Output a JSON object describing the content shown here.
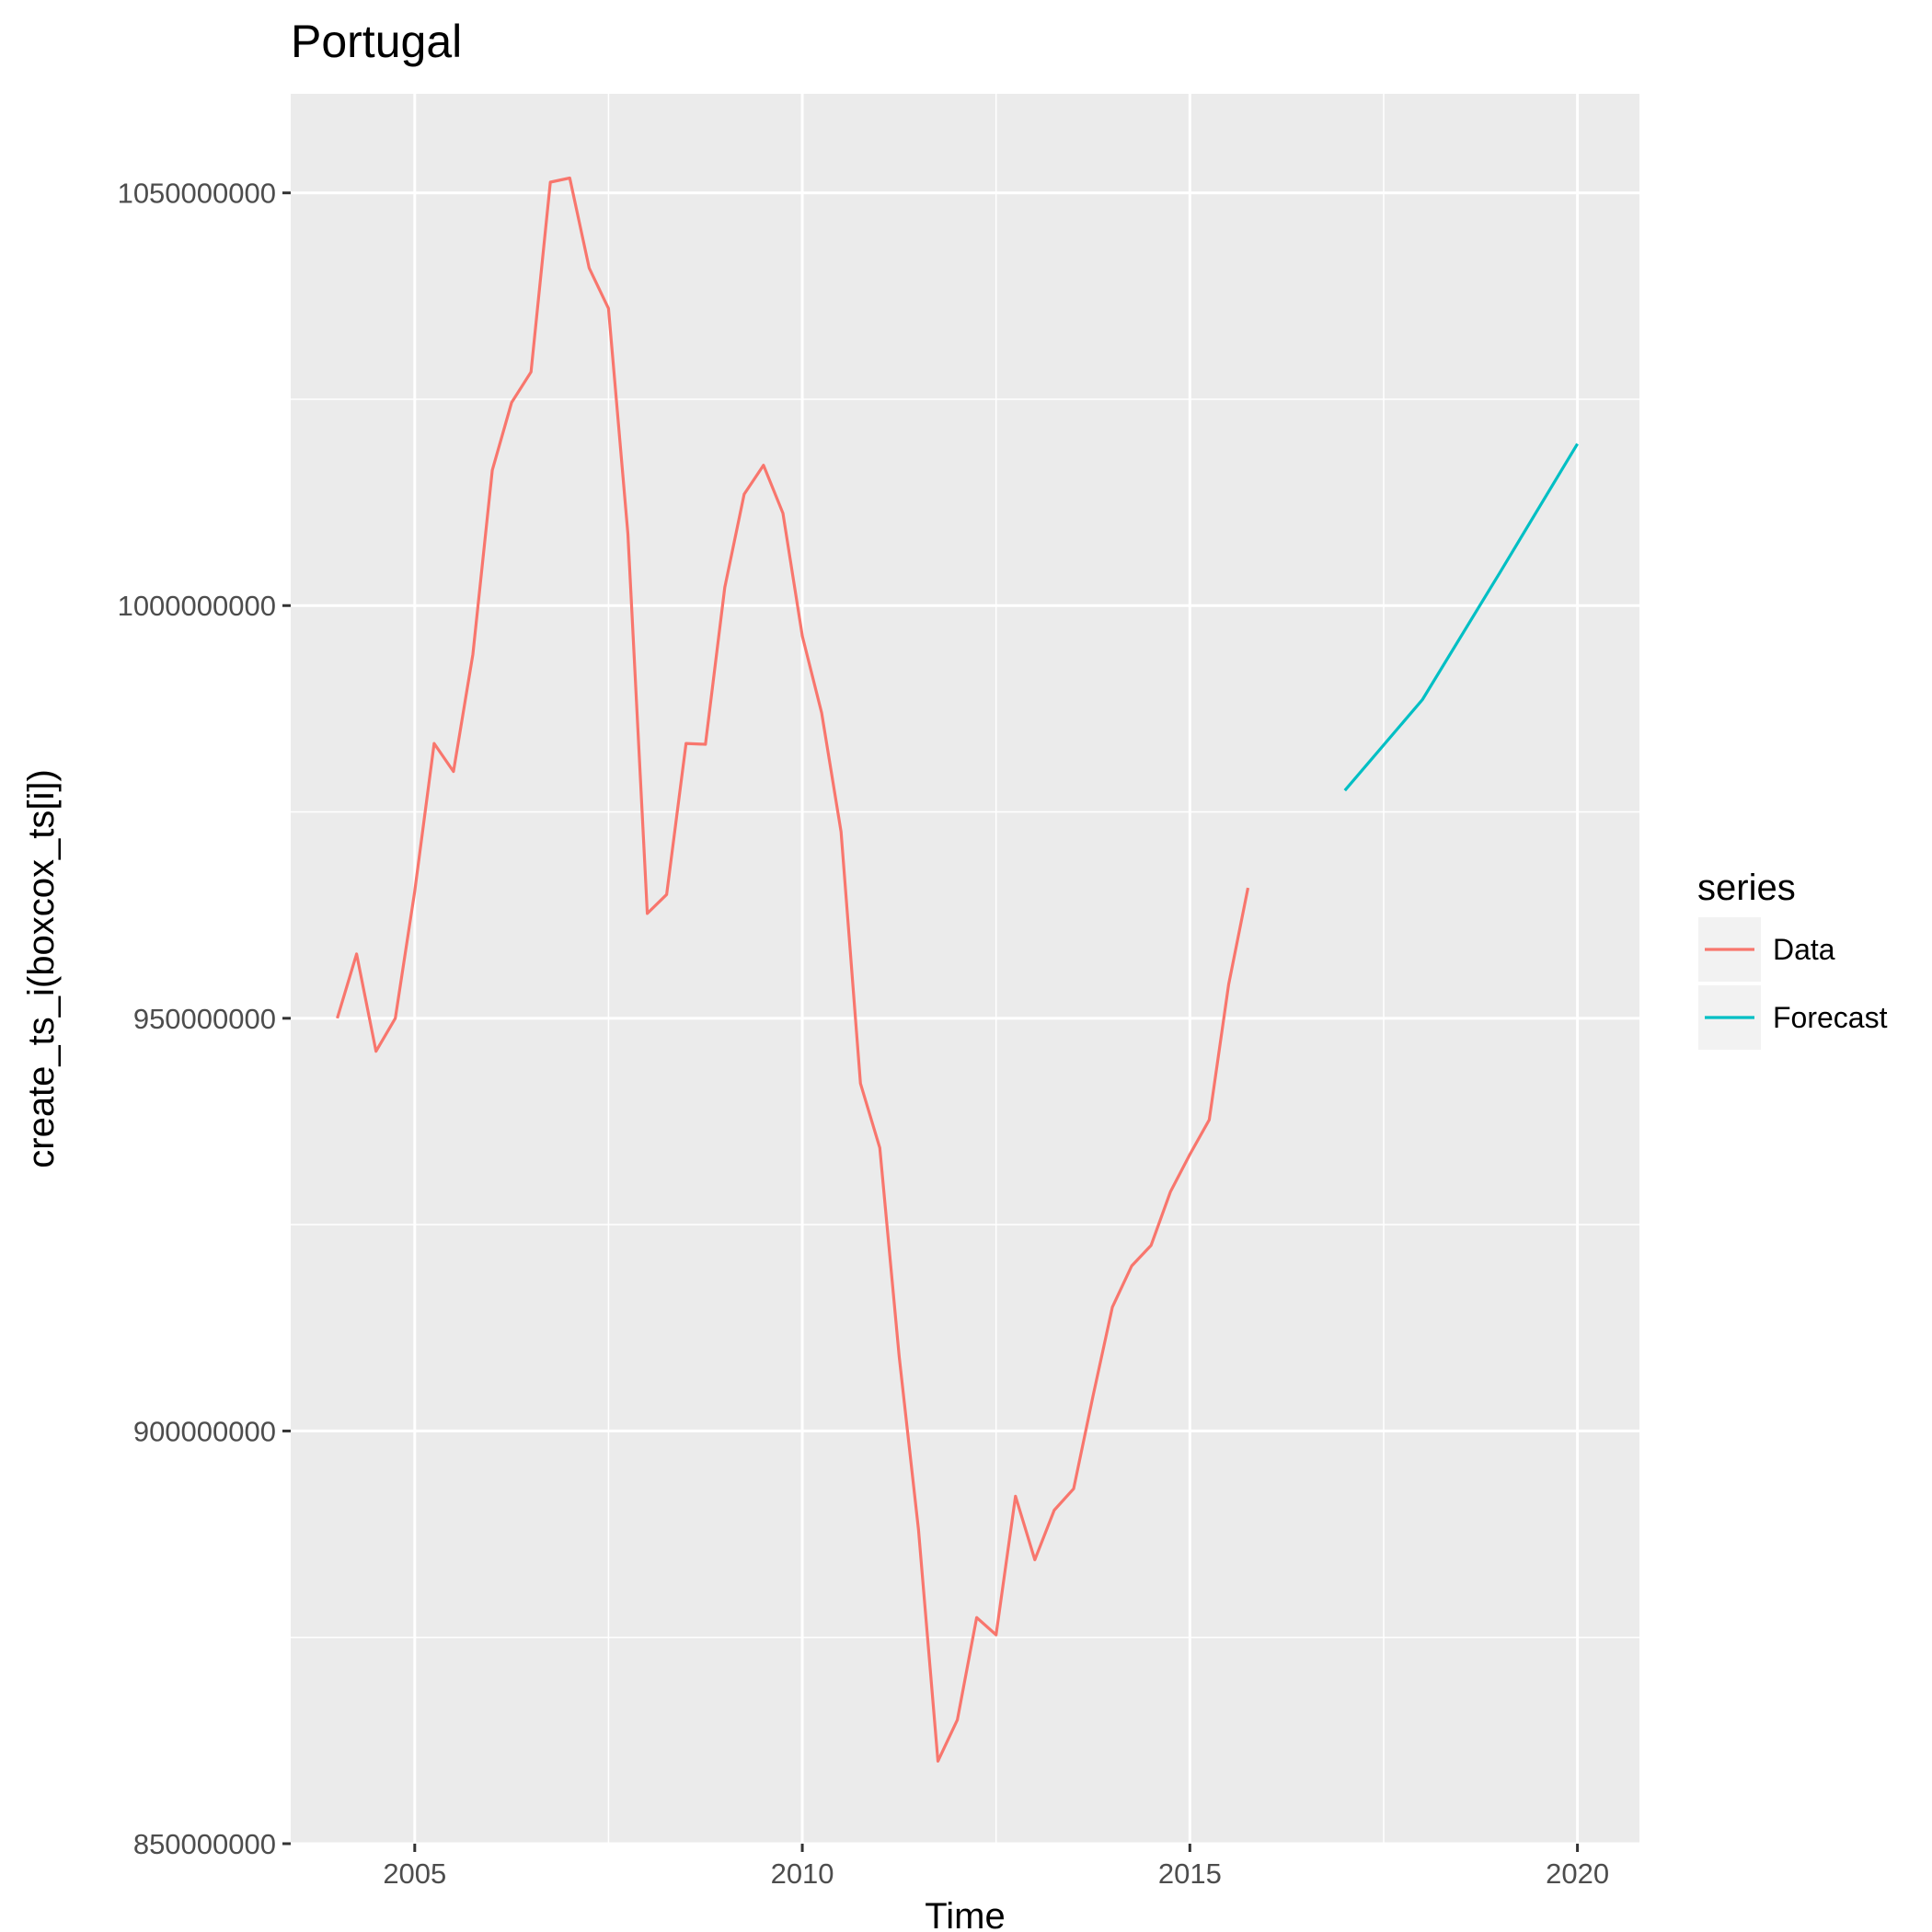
{
  "chart_data": {
    "type": "line",
    "title": "Portugal",
    "xlabel": "Time",
    "ylabel": "create_ts_i(boxcox_ts[i])",
    "xlim": [
      2003.4,
      2020.8
    ],
    "ylim": [
      850000000,
      1062000000
    ],
    "x_ticks": [
      2005,
      2010,
      2015,
      2020
    ],
    "x_tick_labels": [
      "2005",
      "2010",
      "2015",
      "2020"
    ],
    "y_ticks": [
      850000000,
      900000000,
      950000000,
      1000000000,
      1050000000
    ],
    "y_tick_labels": [
      "850000000",
      "900000000",
      "950000000",
      "1000000000",
      "1050000000"
    ],
    "grid": true,
    "legend": {
      "title": "series",
      "position": "right"
    },
    "series": [
      {
        "name": "Data",
        "color": "#F8766D",
        "x": [
          2004.0,
          2004.25,
          2004.5,
          2004.75,
          2005.0,
          2005.25,
          2005.5,
          2005.75,
          2006.0,
          2006.25,
          2006.5,
          2006.75,
          2007.0,
          2007.25,
          2007.5,
          2007.75,
          2008.0,
          2008.25,
          2008.5,
          2008.75,
          2009.0,
          2009.25,
          2009.5,
          2009.75,
          2010.0,
          2010.25,
          2010.5,
          2010.75,
          2011.0,
          2011.25,
          2011.5,
          2011.75,
          2012.0,
          2012.25,
          2012.5,
          2012.75,
          2013.0,
          2013.25,
          2013.5,
          2013.75,
          2014.0,
          2014.25,
          2014.5,
          2014.75,
          2015.0,
          2015.25,
          2015.5,
          2015.75
        ],
        "values": [
          950000000,
          957800000,
          946000000,
          950000000,
          965400000,
          983300000,
          979900000,
          994100000,
          1016400000,
          1024600000,
          1028300000,
          1051300000,
          1051800000,
          1040900000,
          1036000000,
          1008700000,
          962700000,
          965000000,
          983300000,
          983200000,
          1002200000,
          1013500000,
          1017000000,
          1011200000,
          996300000,
          987000000,
          972600000,
          942100000,
          934300000,
          909000000,
          888000000,
          860000000,
          865000000,
          877400000,
          875300000,
          892100000,
          884400000,
          890400000,
          893000000,
          904200000,
          915000000,
          920000000,
          922500000,
          929000000,
          933500000,
          937700000,
          954100000,
          965800000
        ]
      },
      {
        "name": "Forecast",
        "color": "#00BFC4",
        "x": [
          2017.0,
          2018.0,
          2019.0,
          2020.0
        ],
        "values": [
          977600000,
          988600000,
          1004000000,
          1019600000
        ]
      }
    ]
  }
}
